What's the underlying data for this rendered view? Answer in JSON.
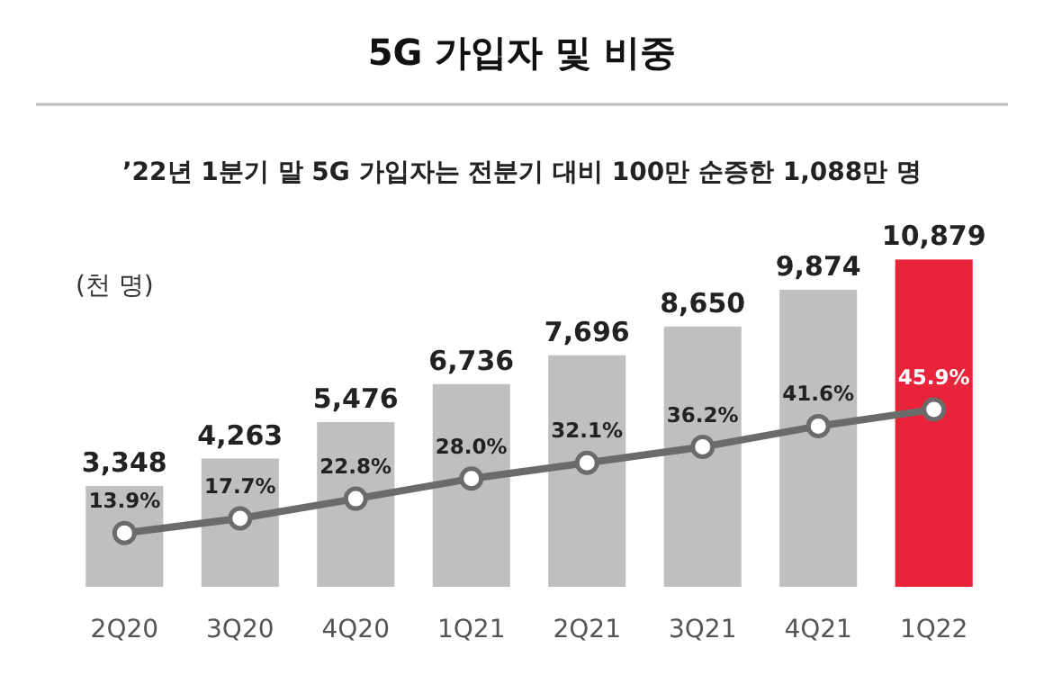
{
  "chart_data": {
    "type": "bar",
    "title": "5G 가입자 및 비중",
    "subtitle": "’22년 1분기 말 5G 가입자는 전분기 대비 100만 순증한 1,088만 명",
    "ylabel": "(천 명)",
    "categories": [
      "2Q20",
      "3Q20",
      "4Q20",
      "1Q21",
      "2Q21",
      "3Q21",
      "4Q21",
      "1Q22"
    ],
    "series": [
      {
        "colors": [
          "#bfbfbf",
          "#bfbfbf",
          "#bfbfbf",
          "#bfbfbf",
          "#bfbfbf",
          "#bfbfbf",
          "#bfbfbf",
          "#e8233a"
        ],
        "values": [
          3348,
          4263,
          5476,
          6736,
          7696,
          8650,
          9874,
          10879
        ],
        "value_labels": [
          "3,348",
          "4,263",
          "5,476",
          "6,736",
          "7,696",
          "8,650",
          "9,874",
          "10,879"
        ]
      },
      {
        "type": "line",
        "axis": "y2",
        "color": "#6b6b6b",
        "marker": "circle",
        "values": [
          13.9,
          17.7,
          22.8,
          28.0,
          32.1,
          36.2,
          41.6,
          45.9
        ],
        "value_labels": [
          "13.9%",
          "17.7%",
          "22.8%",
          "28.0%",
          "32.1%",
          "36.2%",
          "41.6%",
          "45.9%"
        ]
      }
    ],
    "tick_labels": "x",
    "grid": false
  }
}
